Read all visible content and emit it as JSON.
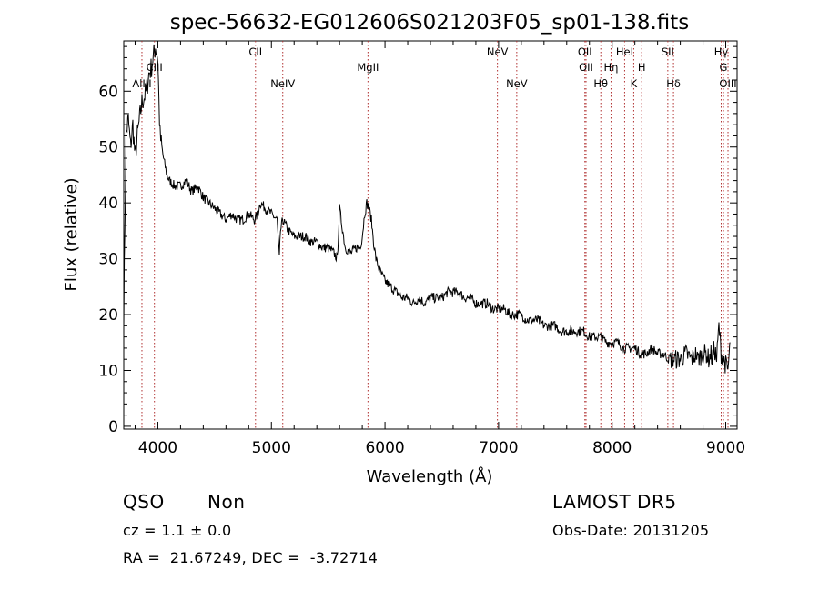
{
  "chart_data": {
    "type": "line",
    "title": "spec-56632-EG012606S021203F05_sp01-138.fits",
    "xlabel": "Wavelength (Å)",
    "ylabel": "Flux (relative)",
    "xlim": [
      3700,
      9100
    ],
    "ylim": [
      -0.5,
      69
    ],
    "x_ticks": [
      4000,
      5000,
      6000,
      7000,
      8000,
      9000
    ],
    "y_ticks": [
      0,
      10,
      20,
      30,
      40,
      50,
      60
    ],
    "grid": false,
    "series": [
      {
        "x": [
          3700,
          3720,
          3740,
          3760,
          3780,
          3800,
          3820,
          3840,
          3860,
          3880,
          3900,
          3920,
          3940,
          3960,
          3980,
          4000,
          4010,
          4020,
          4040,
          4060,
          4080,
          4100,
          4150,
          4200,
          4250,
          4300,
          4350,
          4400,
          4450,
          4500,
          4550,
          4600,
          4650,
          4700,
          4750,
          4800,
          4850,
          4880,
          4900,
          4950,
          5000,
          5050,
          5070,
          5080,
          5100,
          5150,
          5200,
          5250,
          5300,
          5350,
          5400,
          5450,
          5500,
          5550,
          5580,
          5600,
          5650,
          5700,
          5750,
          5780,
          5800,
          5820,
          5840,
          5860,
          5880,
          5900,
          5920,
          5950,
          6000,
          6050,
          6100,
          6150,
          6200,
          6250,
          6300,
          6350,
          6400,
          6450,
          6500,
          6550,
          6600,
          6650,
          6700,
          6750,
          6800,
          6850,
          6900,
          6950,
          7000,
          7050,
          7100,
          7150,
          7200,
          7250,
          7300,
          7350,
          7400,
          7450,
          7500,
          7550,
          7600,
          7650,
          7700,
          7750,
          7800,
          7850,
          7900,
          7950,
          8000,
          8050,
          8100,
          8150,
          8200,
          8250,
          8300,
          8350,
          8400,
          8450,
          8500,
          8550,
          8600,
          8650,
          8700,
          8740,
          8750,
          8800,
          8830,
          8850,
          8870,
          8880,
          8900,
          8920,
          8940,
          8960,
          8980,
          9000,
          9020,
          9040
        ],
        "y": [
          20,
          52,
          55,
          50,
          54,
          48,
          52,
          55,
          58,
          59,
          60,
          63,
          64,
          66,
          68,
          66,
          58,
          52,
          49,
          47,
          45,
          44,
          43,
          43,
          44,
          42,
          43,
          41,
          40,
          39,
          38,
          37,
          38,
          37,
          37,
          38,
          37,
          38,
          40,
          39,
          38,
          37,
          30,
          35,
          37,
          35,
          34,
          34,
          34,
          33,
          33,
          32,
          32,
          31,
          30,
          39,
          32,
          31,
          32,
          32,
          34,
          38,
          40,
          39,
          37,
          33,
          30,
          28,
          26,
          25,
          24,
          23,
          23,
          22,
          23,
          22,
          23,
          23,
          23,
          24,
          24,
          24,
          23,
          23,
          22,
          22,
          22,
          21,
          21,
          21,
          20,
          20,
          20,
          19,
          19,
          19,
          18,
          18,
          18,
          17,
          17,
          17,
          17,
          17,
          16,
          16,
          16,
          15,
          15,
          15,
          14,
          14,
          14,
          13,
          13,
          14,
          13,
          13,
          12,
          12,
          12,
          13,
          12,
          13,
          12,
          13,
          13,
          12,
          13,
          12,
          14,
          12,
          18,
          13,
          12,
          11,
          10,
          15
        ]
      }
    ],
    "lines": [
      {
        "label": "AlIII",
        "x": 3860,
        "row": 3
      },
      {
        "label": "CIII",
        "x": 3970,
        "row": 2
      },
      {
        "label": "CII",
        "x": 4860,
        "row": 1
      },
      {
        "label": "NeIV",
        "x": 5100,
        "row": 3
      },
      {
        "label": "MgII",
        "x": 5850,
        "row": 2
      },
      {
        "label": "NeV",
        "x": 6990,
        "row": 1
      },
      {
        "label": "NeV",
        "x": 7160,
        "row": 3
      },
      {
        "label": "OII",
        "x": 7760,
        "row": 1
      },
      {
        "label": "OII",
        "x": 7770,
        "row": 2
      },
      {
        "label": "Hθ",
        "x": 7900,
        "row": 3
      },
      {
        "label": "Hη",
        "x": 7990,
        "row": 2
      },
      {
        "label": "HeI",
        "x": 8110,
        "row": 1
      },
      {
        "label": "K",
        "x": 8190,
        "row": 3
      },
      {
        "label": "H",
        "x": 8260,
        "row": 2
      },
      {
        "label": "SII",
        "x": 8490,
        "row": 1
      },
      {
        "label": "Hδ",
        "x": 8540,
        "row": 3
      },
      {
        "label": "Hγ",
        "x": 8960,
        "row": 1
      },
      {
        "label": "G",
        "x": 8980,
        "row": 2
      },
      {
        "label": "OIII",
        "x": 9020,
        "row": 3
      }
    ]
  },
  "info": {
    "class": "QSO",
    "subclass": "Non",
    "survey": "LAMOST DR5",
    "cz": "cz = 1.1 ± 0.0",
    "obs_date": "Obs-Date: 20131205",
    "coords": "RA =  21.67249, DEC =  -3.72714"
  }
}
